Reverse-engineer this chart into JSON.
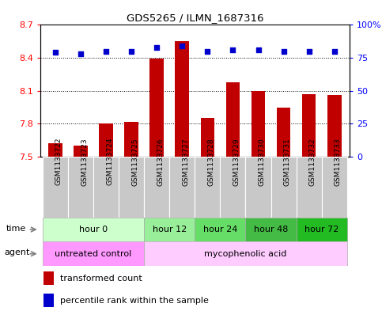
{
  "title": "GDS5265 / ILMN_1687316",
  "samples": [
    "GSM1133722",
    "GSM1133723",
    "GSM1133724",
    "GSM1133725",
    "GSM1133726",
    "GSM1133727",
    "GSM1133728",
    "GSM1133729",
    "GSM1133730",
    "GSM1133731",
    "GSM1133732",
    "GSM1133733"
  ],
  "bar_values": [
    7.62,
    7.6,
    7.8,
    7.82,
    8.39,
    8.55,
    7.85,
    8.18,
    8.1,
    7.95,
    8.07,
    8.06
  ],
  "percentile_values": [
    79,
    78,
    80,
    80,
    83,
    84,
    80,
    81,
    81,
    80,
    80,
    80
  ],
  "ylim_left": [
    7.5,
    8.7
  ],
  "ylim_right": [
    0,
    100
  ],
  "yticks_left": [
    7.5,
    7.8,
    8.1,
    8.4,
    8.7
  ],
  "yticks_right": [
    0,
    25,
    50,
    75,
    100
  ],
  "ytick_labels_left": [
    "7.5",
    "7.8",
    "8.1",
    "8.4",
    "8.7"
  ],
  "ytick_labels_right": [
    "0",
    "25",
    "50",
    "75",
    "100%"
  ],
  "bar_color": "#C00000",
  "dot_color": "#0000CC",
  "bar_baseline": 7.5,
  "time_groups": [
    {
      "label": "hour 0",
      "start": 0,
      "end": 3
    },
    {
      "label": "hour 12",
      "start": 4,
      "end": 5
    },
    {
      "label": "hour 24",
      "start": 6,
      "end": 7
    },
    {
      "label": "hour 48",
      "start": 8,
      "end": 9
    },
    {
      "label": "hour 72",
      "start": 10,
      "end": 11
    }
  ],
  "time_colors": [
    "#CCFFCC",
    "#99EE99",
    "#66DD66",
    "#44BB44",
    "#22BB22"
  ],
  "agent_groups": [
    {
      "label": "untreated control",
      "start": 0,
      "end": 3
    },
    {
      "label": "mycophenolic acid",
      "start": 4,
      "end": 11
    }
  ],
  "agent_colors": [
    "#FF99FF",
    "#FFCCFF"
  ],
  "legend_bar_label": "transformed count",
  "legend_dot_label": "percentile rank within the sample",
  "label_time": "time",
  "label_agent": "agent",
  "sample_bg_color": "#C8C8C8",
  "grid_lines": [
    7.8,
    8.1,
    8.4
  ]
}
